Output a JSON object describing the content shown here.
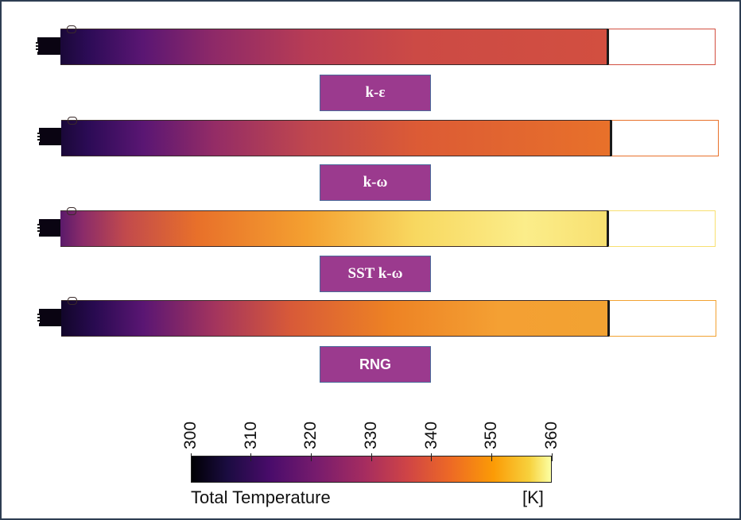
{
  "panels": [
    {
      "label": "k-ε",
      "font": "serif",
      "gradient": "linear-gradient(to right,#1a0838 0%,#2c0b56 5%,#5a1673 15%,#8e2968 28%,#b73c55 45%,#cc4a45 65%,#d24f40 100%)"
    },
    {
      "label": "k-ω",
      "font": "serif",
      "gradient": "linear-gradient(to right,#1a0838 0%,#2c0b56 5%,#5a1673 15%,#942c66 28%,#c0474e 45%,#dc5b35 65%,#e8712a 100%)"
    },
    {
      "label": "SST k-ω",
      "font": "serif",
      "gradient": "linear-gradient(to right,#5a1a6a 0%,#8a2b6a 4%,#c24a4c 12%,#e8702a 25%,#f4a030 45%,#f8d860 65%,#fbed8a 85%,#f8e070 100%)"
    },
    {
      "label": "RNG",
      "font": "sans",
      "gradient": "linear-gradient(to right,#12062a 0%,#280a50 6%,#5a1673 15%,#a3345e 28%,#d85a38 42%,#ed8224 60%,#f4a033 80%,#f2a232 100%)"
    }
  ],
  "colorbar": {
    "title": "Total Temperature",
    "unit": "[K]",
    "ticks": [
      "300",
      "310",
      "320",
      "330",
      "340",
      "350",
      "360"
    ],
    "min": 300,
    "max": 360
  }
}
